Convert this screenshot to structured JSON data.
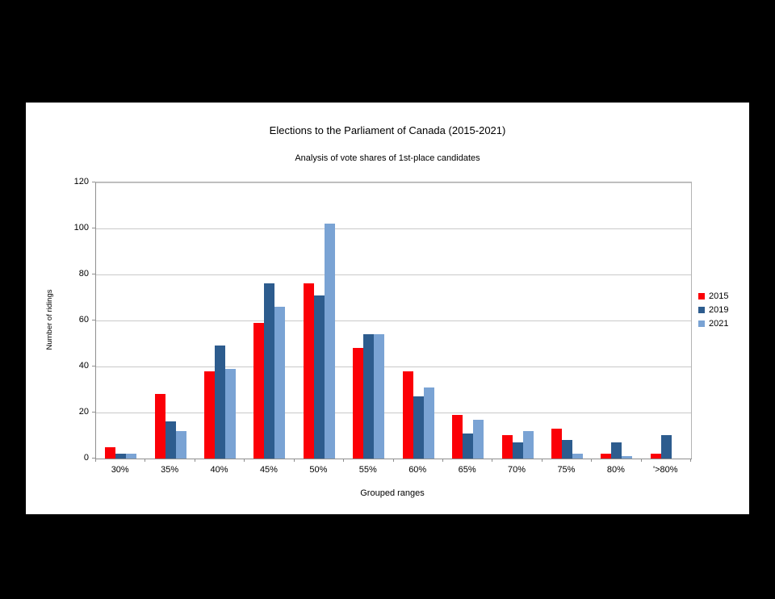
{
  "window": {
    "background_color": "#000000",
    "panel_color": "#ffffff"
  },
  "chart_data": {
    "type": "bar",
    "title": "Elections to the Parliament of Canada (2015-2021)",
    "subtitle": "Analysis of vote shares of 1st-place candidates",
    "xlabel": "Grouped ranges",
    "ylabel": "Number of ridings",
    "categories": [
      "30%",
      "35%",
      "40%",
      "45%",
      "50%",
      "55%",
      "60%",
      "65%",
      "70%",
      "75%",
      "80%",
      "'>80%"
    ],
    "series": [
      {
        "name": "2015",
        "color": "#fb0007",
        "values": [
          5,
          28,
          38,
          59,
          76,
          48,
          38,
          19,
          10,
          13,
          2,
          2
        ]
      },
      {
        "name": "2019",
        "color": "#2d5c8e",
        "values": [
          2,
          16,
          49,
          76,
          71,
          54,
          27,
          11,
          7,
          8,
          7,
          10
        ]
      },
      {
        "name": "2021",
        "color": "#7aa3d4",
        "values": [
          2,
          12,
          39,
          66,
          102,
          54,
          31,
          17,
          12,
          2,
          1,
          0
        ]
      }
    ],
    "ylim": [
      0,
      120
    ],
    "y_ticks": [
      0,
      20,
      40,
      60,
      80,
      100,
      120
    ],
    "grid": true,
    "gridline_color": "#c9c9c9",
    "axis_color": "#8f8f8f",
    "plot_border_color": "#b3b3b3",
    "legend_position": "right"
  }
}
